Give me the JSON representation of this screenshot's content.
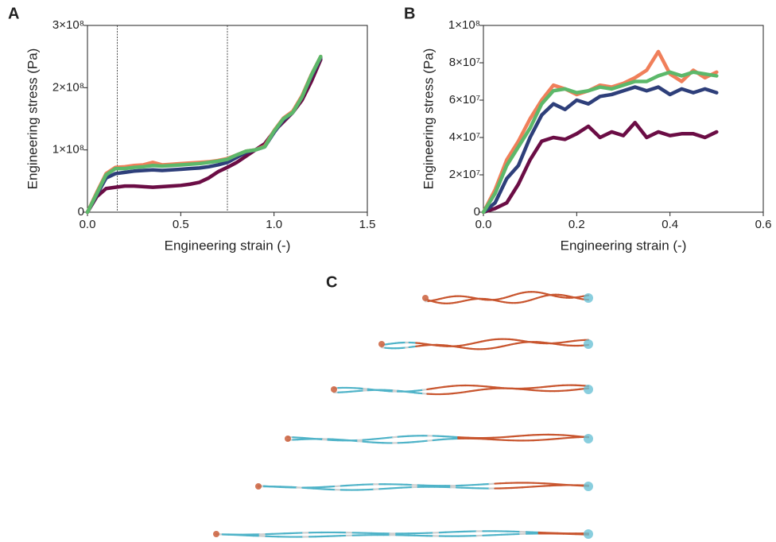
{
  "chart_data": [
    {
      "type": "line",
      "panel_label": "A",
      "xlabel": "Engineering strain (-)",
      "ylabel": "Engineering stress (Pa)",
      "x": [
        0,
        0.05,
        0.1,
        0.15,
        0.2,
        0.25,
        0.3,
        0.35,
        0.4,
        0.45,
        0.5,
        0.55,
        0.6,
        0.65,
        0.7,
        0.75,
        0.8,
        0.85,
        0.9,
        0.95,
        1.0,
        1.05,
        1.1,
        1.15,
        1.2,
        1.25
      ],
      "series": [
        {
          "color": "#6b0d45",
          "values": [
            0,
            25000000,
            38000000,
            40000000,
            42000000,
            42000000,
            41000000,
            40000000,
            41000000,
            42000000,
            43000000,
            45000000,
            48000000,
            55000000,
            65000000,
            72000000,
            80000000,
            90000000,
            100000000,
            110000000,
            130000000,
            145000000,
            160000000,
            180000000,
            210000000,
            245000000
          ]
        },
        {
          "color": "#2e3f7a",
          "values": [
            0,
            28000000,
            55000000,
            62000000,
            64000000,
            66000000,
            67000000,
            68000000,
            67000000,
            68000000,
            69000000,
            70000000,
            71000000,
            73000000,
            76000000,
            80000000,
            88000000,
            96000000,
            100000000,
            105000000,
            128000000,
            148000000,
            160000000,
            185000000,
            218000000,
            248000000
          ]
        },
        {
          "color": "#f07f5a",
          "values": [
            0,
            32000000,
            62000000,
            72000000,
            73000000,
            75000000,
            76000000,
            80000000,
            76000000,
            77000000,
            78000000,
            79000000,
            80000000,
            81000000,
            83000000,
            86000000,
            92000000,
            98000000,
            100000000,
            106000000,
            131000000,
            151000000,
            162000000,
            187000000,
            221000000,
            250000000
          ]
        },
        {
          "color": "#5cb86a",
          "values": [
            0,
            30000000,
            60000000,
            70000000,
            70000000,
            72000000,
            73000000,
            75000000,
            74000000,
            75000000,
            76000000,
            77000000,
            78000000,
            80000000,
            82000000,
            85000000,
            92000000,
            98000000,
            100000000,
            105000000,
            130000000,
            150000000,
            160000000,
            185000000,
            220000000,
            250000000
          ]
        }
      ],
      "vlines": [
        0.16,
        0.75
      ],
      "xlim": [
        0,
        1.5
      ],
      "xticks": [
        {
          "value": 0,
          "label": "0.0"
        },
        0.5,
        {
          "value": 1,
          "label": "1.0"
        },
        1.5
      ],
      "ylim": [
        0,
        300000000
      ],
      "yticks": [
        0,
        {
          "value": 100000000,
          "label": "1×10⁸"
        },
        {
          "value": 200000000,
          "label": "2×10⁸"
        },
        {
          "value": 300000000,
          "label": "3×10⁸"
        }
      ]
    },
    {
      "type": "line",
      "panel_label": "B",
      "xlabel": "Engineering strain (-)",
      "ylabel": "Engineering stress (Pa)",
      "x": [
        0,
        0.025,
        0.05,
        0.075,
        0.1,
        0.125,
        0.15,
        0.175,
        0.2,
        0.225,
        0.25,
        0.275,
        0.3,
        0.325,
        0.35,
        0.375,
        0.4,
        0.425,
        0.45,
        0.475,
        0.5
      ],
      "series": [
        {
          "color": "#6b0d45",
          "values": [
            0,
            2000000,
            5000000,
            15000000,
            28000000,
            38000000,
            40000000,
            39000000,
            42000000,
            46000000,
            40000000,
            43000000,
            41000000,
            48000000,
            40000000,
            43000000,
            41000000,
            42000000,
            42000000,
            40000000,
            43000000
          ]
        },
        {
          "color": "#2e3f7a",
          "values": [
            0,
            5000000,
            18000000,
            25000000,
            40000000,
            52000000,
            58000000,
            55000000,
            60000000,
            58000000,
            62000000,
            63000000,
            65000000,
            67000000,
            65000000,
            67000000,
            63000000,
            66000000,
            64000000,
            66000000,
            64000000
          ]
        },
        {
          "color": "#f07f5a",
          "values": [
            0,
            12000000,
            28000000,
            38000000,
            50000000,
            60000000,
            68000000,
            66000000,
            63000000,
            65000000,
            68000000,
            67000000,
            69000000,
            72000000,
            76000000,
            86000000,
            74000000,
            70000000,
            76000000,
            72000000,
            75000000
          ]
        },
        {
          "color": "#5cb86a",
          "values": [
            0,
            10000000,
            25000000,
            35000000,
            45000000,
            58000000,
            65000000,
            66000000,
            64000000,
            65000000,
            67000000,
            66000000,
            68000000,
            70000000,
            70000000,
            73000000,
            75000000,
            73000000,
            75000000,
            74000000,
            73000000
          ]
        }
      ],
      "xlim": [
        0,
        0.6
      ],
      "xticks": [
        {
          "value": 0,
          "label": "0.0"
        },
        0.2,
        0.4,
        0.6
      ],
      "ylim": [
        0,
        100000000
      ],
      "yticks": [
        0,
        {
          "value": 20000000,
          "label": "2×10⁷"
        },
        {
          "value": 40000000,
          "label": "4×10⁷"
        },
        {
          "value": 60000000,
          "label": "6×10⁷"
        },
        {
          "value": 80000000,
          "label": "8×10⁷"
        },
        {
          "value": 100000000,
          "label": "1×10⁸"
        }
      ]
    }
  ],
  "panel_c": {
    "label": "C"
  }
}
